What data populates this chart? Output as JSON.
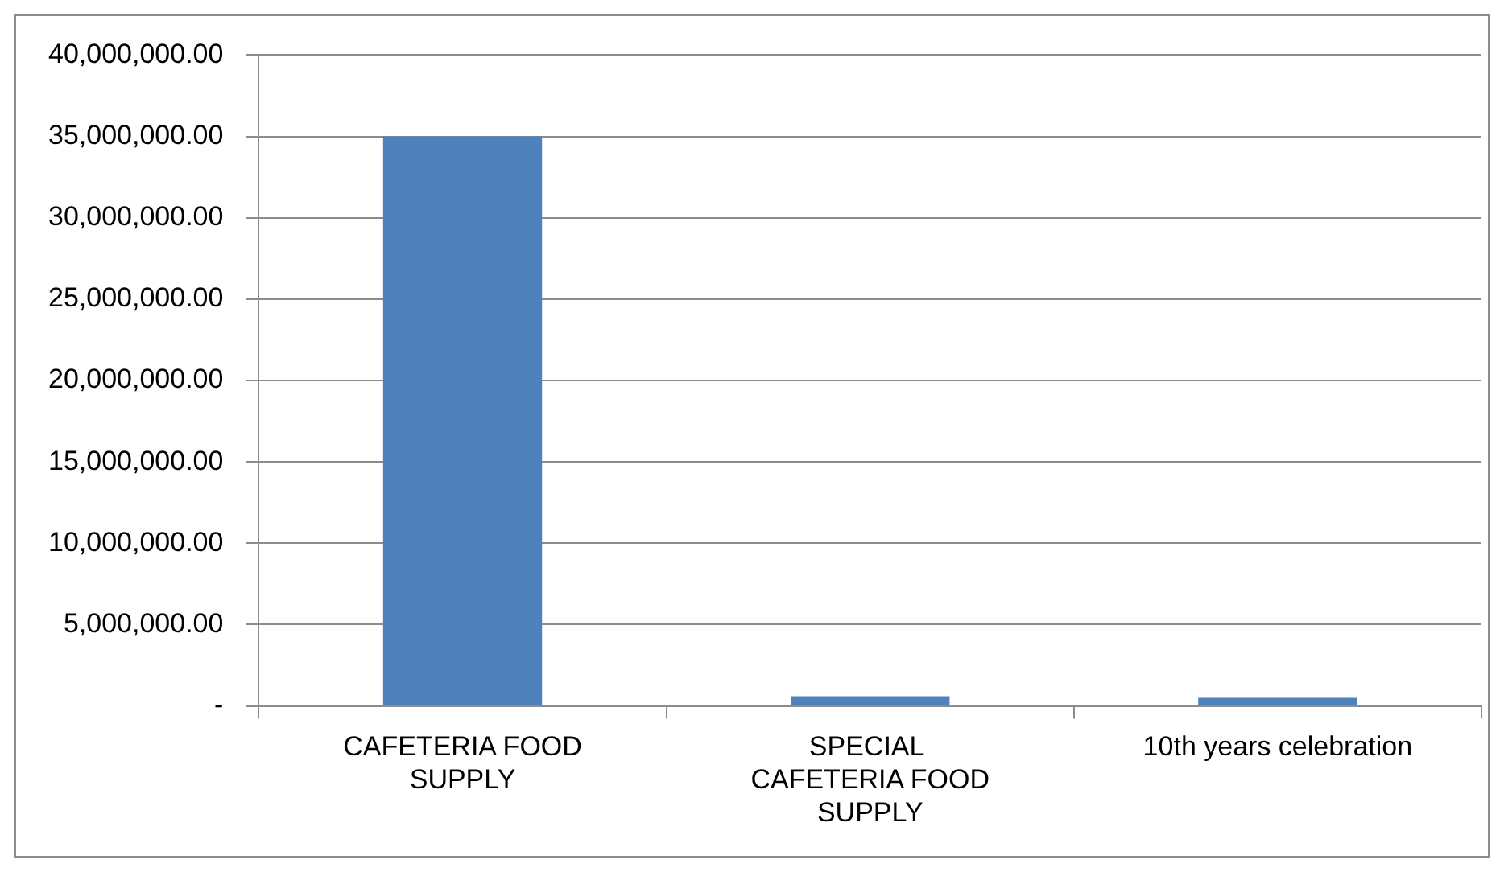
{
  "chart_data": {
    "type": "bar",
    "categories": [
      "CAFETERIA FOOD SUPPLY",
      "SPECIAL  CAFETERIA FOOD SUPPLY",
      "10th years celebration"
    ],
    "values": [
      35000000,
      600000,
      500000
    ],
    "color": "#4f81bd",
    "ylim": [
      0,
      40000000
    ],
    "yticks": [
      {
        "value": 0,
        "label": "-"
      },
      {
        "value": 5000000,
        "label": "5,000,000.00"
      },
      {
        "value": 10000000,
        "label": "10,000,000.00"
      },
      {
        "value": 15000000,
        "label": "15,000,000.00"
      },
      {
        "value": 20000000,
        "label": "20,000,000.00"
      },
      {
        "value": 25000000,
        "label": "25,000,000.00"
      },
      {
        "value": 30000000,
        "label": "30,000,000.00"
      },
      {
        "value": 35000000,
        "label": "35,000,000.00"
      },
      {
        "value": 40000000,
        "label": "40,000,000.00"
      }
    ],
    "grid": "y"
  }
}
